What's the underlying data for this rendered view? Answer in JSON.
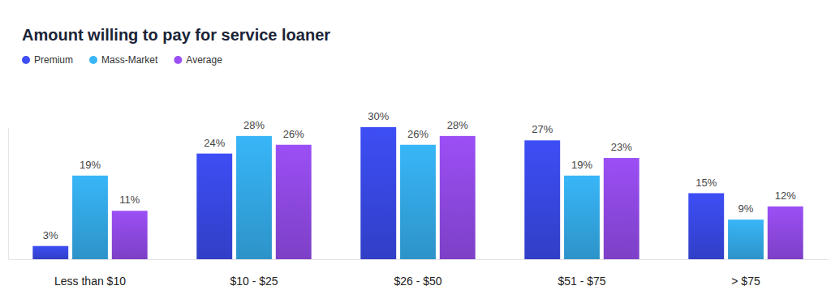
{
  "chart_data": {
    "type": "bar",
    "title": "Amount willing to pay for service loaner",
    "categories": [
      "Less than $10",
      "$10 - $25",
      "$26 - $50",
      "$51 - $75",
      "> $75"
    ],
    "series": [
      {
        "name": "Premium",
        "color": "#3d4ef5",
        "values": [
          3,
          24,
          30,
          27,
          15
        ],
        "value_labels": [
          "3%",
          "24%",
          "30%",
          "27%",
          "15%"
        ]
      },
      {
        "name": "Mass-Market",
        "color": "#38b6f8",
        "values": [
          19,
          28,
          26,
          19,
          9
        ],
        "value_labels": [
          "19%",
          "28%",
          "26%",
          "19%",
          "9%"
        ]
      },
      {
        "name": "Average",
        "color": "#9b4ff5",
        "values": [
          11,
          26,
          28,
          23,
          12
        ],
        "value_labels": [
          "11%",
          "26%",
          "28%",
          "23%",
          "12%"
        ]
      }
    ],
    "ylim": [
      0,
      30
    ],
    "data_labels": true,
    "tick_labels": "x",
    "legend": "top-left",
    "grid": false
  }
}
